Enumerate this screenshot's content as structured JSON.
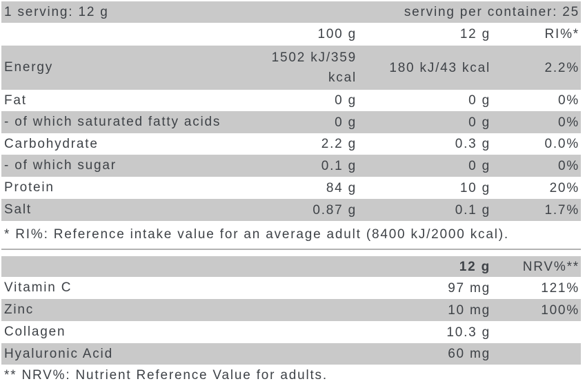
{
  "colors": {
    "shaded_row": "#c9c9c9",
    "text": "#3e4247",
    "divider": "#b2b2b2",
    "background": "#ffffff"
  },
  "serving_bar": {
    "serving": "1 serving: 12 g",
    "per_container": "serving per container: 25"
  },
  "nutrition_table": {
    "headers": {
      "per_100g": "100 g",
      "per_12g": "12 g",
      "ri": "RI%*"
    },
    "rows": [
      {
        "label": "Energy",
        "per_100g": "1502 kJ/359\nkcal",
        "per_12g": "180 kJ/43 kcal",
        "ri_percent": "2.2%"
      },
      {
        "label": "Fat",
        "per_100g": "0 g",
        "per_12g": "0 g",
        "ri_percent": "0%"
      },
      {
        "label": "- of which saturated fatty acids",
        "per_100g": "0 g",
        "per_12g": "0 g",
        "ri_percent": "0%"
      },
      {
        "label": "Carbohydrate",
        "per_100g": "2.2 g",
        "per_12g": "0.3 g",
        "ri_percent": "0.0%"
      },
      {
        "label": "- of which sugar",
        "per_100g": "0.1 g",
        "per_12g": "0 g",
        "ri_percent": "0%"
      },
      {
        "label": "Protein",
        "per_100g": "84 g",
        "per_12g": "10 g",
        "ri_percent": "20%"
      },
      {
        "label": "Salt",
        "per_100g": "0.87 g",
        "per_12g": "0.1 g",
        "ri_percent": "1.7%"
      }
    ],
    "footnote": "* RI%: Reference intake value for an average adult (8400 kJ/2000 kcal)."
  },
  "supplement_table": {
    "headers": {
      "per_12g": "12 g",
      "nrv": "NRV%**"
    },
    "rows": [
      {
        "label": "Vitamin C",
        "per_12g": "97 mg",
        "nrv_percent": "121%"
      },
      {
        "label": "Zinc",
        "per_12g": "10 mg",
        "nrv_percent": "100%"
      },
      {
        "label": "Collagen",
        "per_12g": "10.3 g",
        "nrv_percent": ""
      },
      {
        "label": "Hyaluronic Acid",
        "per_12g": "60 mg",
        "nrv_percent": ""
      }
    ],
    "footnote": "** NRV%: Nutrient Reference Value for adults."
  }
}
